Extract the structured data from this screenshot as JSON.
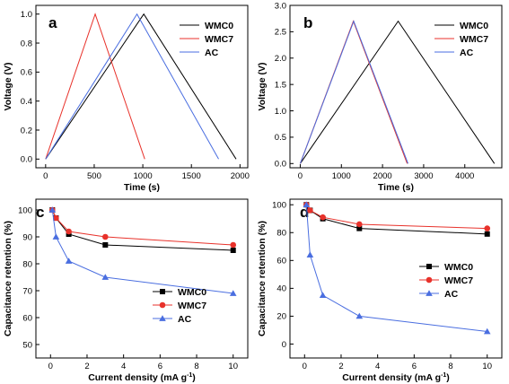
{
  "chart_data": [
    {
      "panel": "a",
      "type": "line",
      "xlabel": "Time (s)",
      "ylabel": "Voltage (V)",
      "xlim": [
        -100,
        2080
      ],
      "ylim": [
        -0.06,
        1.06
      ],
      "xticks": [
        0,
        500,
        1000,
        1500,
        2000
      ],
      "yticks": [
        0.0,
        0.2,
        0.4,
        0.6,
        0.8,
        1.0
      ],
      "legend_position": "top-right",
      "series": [
        {
          "name": "WMC0",
          "color": "#000000",
          "x": [
            0,
            1010,
            1960
          ],
          "y": [
            0.0,
            1.0,
            0.0
          ]
        },
        {
          "name": "WMC7",
          "color": "#e8322b",
          "x": [
            0,
            510,
            1020
          ],
          "y": [
            0.0,
            1.0,
            0.0
          ]
        },
        {
          "name": "AC",
          "color": "#4a6ee0",
          "x": [
            0,
            940,
            1780
          ],
          "y": [
            0.0,
            1.0,
            0.0
          ]
        }
      ]
    },
    {
      "panel": "b",
      "type": "line",
      "xlabel": "Time (s)",
      "ylabel": "Voltage (V)",
      "xlim": [
        -250,
        4900
      ],
      "ylim": [
        -0.08,
        3.0
      ],
      "xticks": [
        0,
        1000,
        2000,
        3000,
        4000
      ],
      "yticks": [
        0.0,
        0.5,
        1.0,
        1.5,
        2.0,
        2.5,
        3.0
      ],
      "legend_position": "top-right",
      "series": [
        {
          "name": "WMC0",
          "color": "#000000",
          "x": [
            0,
            2380,
            4720
          ],
          "y": [
            0.0,
            2.7,
            0.0
          ]
        },
        {
          "name": "WMC7",
          "color": "#e8322b",
          "x": [
            0,
            1290,
            2600
          ],
          "y": [
            0.0,
            2.7,
            0.0
          ]
        },
        {
          "name": "AC",
          "color": "#4a6ee0",
          "x": [
            0,
            1300,
            2620
          ],
          "y": [
            0.0,
            2.7,
            0.0
          ]
        }
      ]
    },
    {
      "panel": "c",
      "type": "line",
      "xlabel": "Current density (mA g-1)",
      "ylabel": "Capacitance retention (%)",
      "xlim": [
        -0.8,
        10.8
      ],
      "ylim": [
        45,
        104
      ],
      "xticks": [
        0,
        2,
        4,
        6,
        8,
        10
      ],
      "yticks": [
        50,
        60,
        70,
        80,
        90,
        100
      ],
      "legend_position": "bottom-center",
      "series": [
        {
          "name": "WMC0",
          "color": "#000000",
          "marker": "square",
          "x": [
            0.1,
            0.3,
            1,
            3,
            10
          ],
          "y": [
            100,
            97,
            91,
            87,
            85
          ]
        },
        {
          "name": "WMC7",
          "color": "#e8322b",
          "marker": "circle",
          "x": [
            0.1,
            0.3,
            1,
            3,
            10
          ],
          "y": [
            100,
            97,
            92,
            90,
            87
          ]
        },
        {
          "name": "AC",
          "color": "#4a6ee0",
          "marker": "triangle",
          "x": [
            0.1,
            0.3,
            1,
            3,
            10
          ],
          "y": [
            100,
            90,
            81,
            75,
            69
          ]
        }
      ]
    },
    {
      "panel": "d",
      "type": "line",
      "xlabel": "Current density (mA g-1)",
      "ylabel": "Capacitance retention (%)",
      "xlim": [
        -0.8,
        10.8
      ],
      "ylim": [
        -10,
        104
      ],
      "xticks": [
        0,
        2,
        4,
        6,
        8,
        10
      ],
      "yticks": [
        0,
        20,
        40,
        60,
        80,
        100
      ],
      "legend_position": "middle-center",
      "series": [
        {
          "name": "WMC0",
          "color": "#000000",
          "marker": "square",
          "x": [
            0.1,
            0.3,
            1,
            3,
            10
          ],
          "y": [
            100,
            96,
            90,
            83,
            79
          ]
        },
        {
          "name": "WMC7",
          "color": "#e8322b",
          "marker": "circle",
          "x": [
            0.1,
            0.3,
            1,
            3,
            10
          ],
          "y": [
            100,
            96,
            91,
            86,
            83
          ]
        },
        {
          "name": "AC",
          "color": "#4a6ee0",
          "marker": "triangle",
          "x": [
            0.1,
            0.3,
            1,
            3,
            10
          ],
          "y": [
            100,
            64,
            35,
            20,
            9
          ]
        }
      ]
    }
  ]
}
